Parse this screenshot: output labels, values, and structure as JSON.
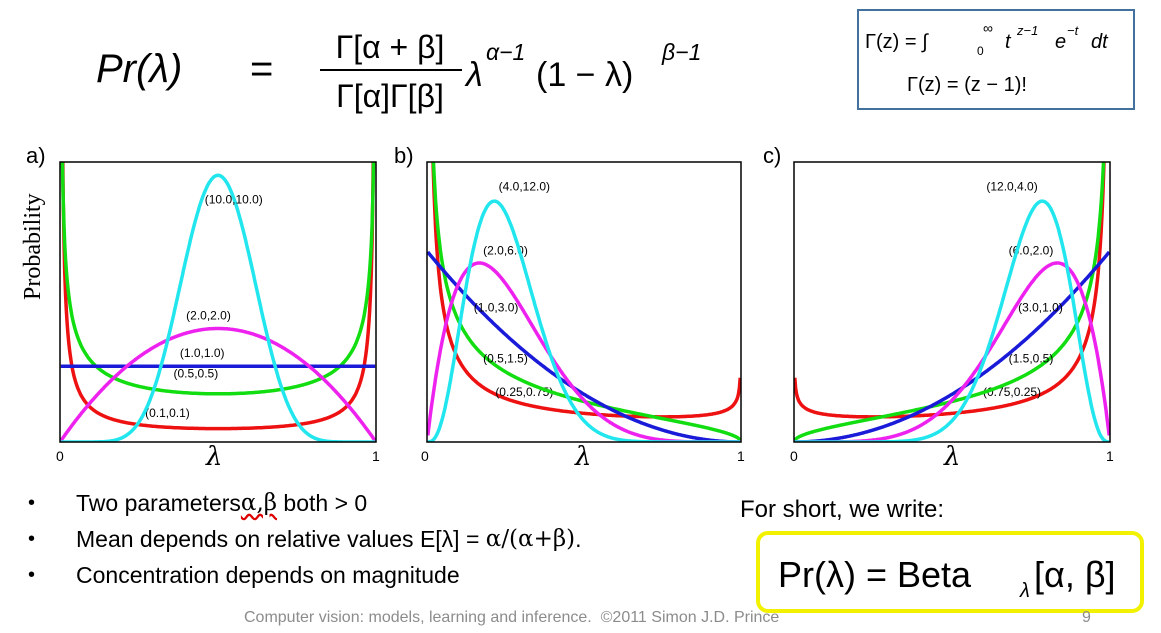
{
  "equation": {
    "lhs": "Pr(λ)",
    "equals": "=",
    "numerator": "Γ[α + β]",
    "denominator": "Γ[α]Γ[β]",
    "tail": "λ",
    "exp1": "α−1",
    "paren": "(1 − λ)",
    "exp2": "β−1"
  },
  "gamma_box": {
    "line1_pre": "Γ(z) = ∫",
    "line1_lo": "0",
    "line1_hi": "∞",
    "line1_t": "t",
    "line1_texp": "z−1",
    "line1_e": "e",
    "line1_eexp": "−t",
    "line1_end": "dt",
    "line2": "Γ(z) = (z − 1)!"
  },
  "panels": {
    "a": "a)",
    "b": "b)",
    "c": "c)"
  },
  "axis": {
    "ylabel": "Probability",
    "xlabel": "λ",
    "tick0": "0",
    "tick1": "1"
  },
  "colors": {
    "red": "#ee1111",
    "green": "#11dd11",
    "blue": "#1a1ad9",
    "magenta": "#ee22ee",
    "cyan": "#22e6ee",
    "box_border": "#41719c",
    "highlight": "#f2f200",
    "footer": "#8c8c8c"
  },
  "chart_data": [
    {
      "type": "line",
      "panel": "a)",
      "xlim": [
        0,
        1
      ],
      "series": [
        {
          "name": "(0.1,0.1)",
          "alpha": 0.1,
          "beta": 0.1,
          "color": "#ee1111"
        },
        {
          "name": "(0.5,0.5)",
          "alpha": 0.5,
          "beta": 0.5,
          "color": "#11dd11"
        },
        {
          "name": "(1.0,1.0)",
          "alpha": 1.0,
          "beta": 1.0,
          "color": "#1a1ad9"
        },
        {
          "name": "(2.0,2.0)",
          "alpha": 2.0,
          "beta": 2.0,
          "color": "#ee22ee"
        },
        {
          "name": "(10.0,10.0)",
          "alpha": 10.0,
          "beta": 10.0,
          "color": "#22e6ee"
        }
      ]
    },
    {
      "type": "line",
      "panel": "b)",
      "xlim": [
        0,
        1
      ],
      "series": [
        {
          "name": "(0.25,0.75)",
          "alpha": 0.25,
          "beta": 0.75,
          "color": "#ee1111"
        },
        {
          "name": "(0.5,1.5)",
          "alpha": 0.5,
          "beta": 1.5,
          "color": "#11dd11"
        },
        {
          "name": "(1.0,3.0)",
          "alpha": 1.0,
          "beta": 3.0,
          "color": "#1a1ad9"
        },
        {
          "name": "(2.0,6.0)",
          "alpha": 2.0,
          "beta": 6.0,
          "color": "#ee22ee"
        },
        {
          "name": "(4.0,12.0)",
          "alpha": 4.0,
          "beta": 12.0,
          "color": "#22e6ee"
        }
      ]
    },
    {
      "type": "line",
      "panel": "c)",
      "xlim": [
        0,
        1
      ],
      "series": [
        {
          "name": "(0.75,0.25)",
          "alpha": 0.75,
          "beta": 0.25,
          "color": "#ee1111"
        },
        {
          "name": "(1.5,0.5)",
          "alpha": 1.5,
          "beta": 0.5,
          "color": "#11dd11"
        },
        {
          "name": "(3.0,1.0)",
          "alpha": 3.0,
          "beta": 1.0,
          "color": "#1a1ad9"
        },
        {
          "name": "(6.0,2.0)",
          "alpha": 6.0,
          "beta": 2.0,
          "color": "#ee22ee"
        },
        {
          "name": "(12.0,4.0)",
          "alpha": 12.0,
          "beta": 4.0,
          "color": "#22e6ee"
        }
      ]
    }
  ],
  "bullets": {
    "b1_text": "Two parameters ",
    "b1_greek": "α,β",
    "b1_end": " both > 0",
    "b2_text": "Mean depends on relative values E[λ] = ",
    "b2_greek": "α/(α+β)",
    "b2_end": ".",
    "b3_text": "Concentration depends on magnitude",
    "dot": "•"
  },
  "short": {
    "label": "For short, we write:",
    "lhs": "Pr(λ) = Beta",
    "sub": "λ",
    "rhs": "[α, β]"
  },
  "footer": {
    "text": "Computer vision: models, learning and inference.  ©2011 Simon J.D. Prince",
    "page": "9"
  }
}
